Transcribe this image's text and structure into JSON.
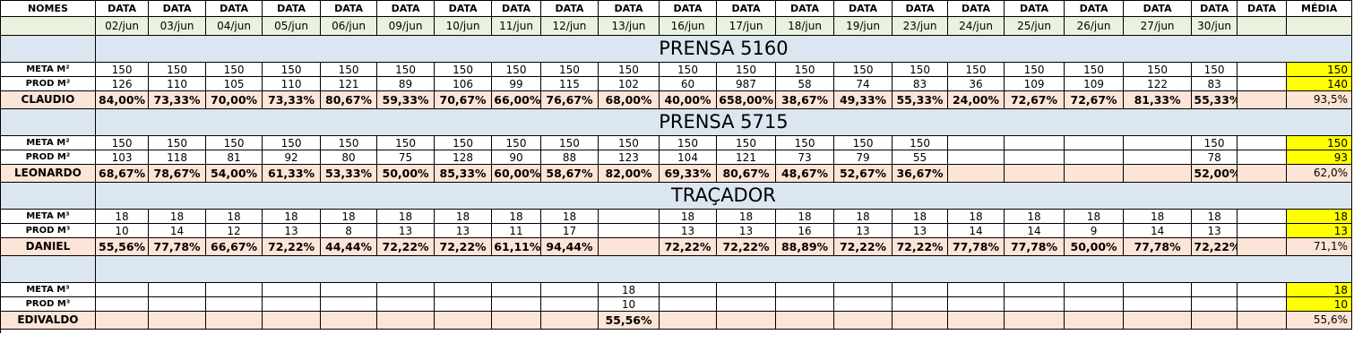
{
  "header": {
    "names_label": "NOMES",
    "data_labels": [
      "DATA",
      "DATA",
      "DATA",
      "DATA",
      "DATA",
      "DATA",
      "DATA",
      "DATA",
      "DATA",
      "DATA",
      "DATA",
      "DATA",
      "DATA",
      "DATA",
      "DATA",
      "DATA",
      "DATA",
      "DATA",
      "DATA",
      "DATA",
      "DATA"
    ],
    "average_label": "MÉDIA",
    "dates": [
      "02/jun",
      "03/jun",
      "04/jun",
      "05/jun",
      "06/jun",
      "09/jun",
      "10/jun",
      "11/jun",
      "12/jun",
      "13/jun",
      "16/jun",
      "17/jun",
      "18/jun",
      "19/jun",
      "23/jun",
      "24/jun",
      "25/jun",
      "26/jun",
      "27/jun",
      "30/jun",
      ""
    ]
  },
  "sections": [
    {
      "title": "PRENSA 5160",
      "meta": {
        "label": "META M²",
        "values": [
          "150",
          "150",
          "150",
          "150",
          "150",
          "150",
          "150",
          "150",
          "150",
          "150",
          "150",
          "150",
          "150",
          "150",
          "150",
          "150",
          "150",
          "150",
          "150",
          "150",
          ""
        ],
        "avg": "150"
      },
      "prod": {
        "label": "PROD M²",
        "values": [
          "126",
          "110",
          "105",
          "110",
          "121",
          "89",
          "106",
          "99",
          "115",
          "102",
          "60",
          "987",
          "58",
          "74",
          "83",
          "36",
          "109",
          "109",
          "122",
          "83",
          ""
        ],
        "avg": "140"
      },
      "person": {
        "label": "CLAUDIO",
        "values": [
          "84,00%",
          "73,33%",
          "70,00%",
          "73,33%",
          "80,67%",
          "59,33%",
          "70,67%",
          "66,00%",
          "76,67%",
          "68,00%",
          "40,00%",
          "658,00%",
          "38,67%",
          "49,33%",
          "55,33%",
          "24,00%",
          "72,67%",
          "72,67%",
          "81,33%",
          "55,33%",
          ""
        ],
        "avg": "93,5%"
      }
    },
    {
      "title": "PRENSA 5715",
      "meta": {
        "label": "META M²",
        "values": [
          "150",
          "150",
          "150",
          "150",
          "150",
          "150",
          "150",
          "150",
          "150",
          "150",
          "150",
          "150",
          "150",
          "150",
          "150",
          "",
          "",
          "",
          "",
          "150",
          ""
        ],
        "avg": "150"
      },
      "prod": {
        "label": "PROD M²",
        "values": [
          "103",
          "118",
          "81",
          "92",
          "80",
          "75",
          "128",
          "90",
          "88",
          "123",
          "104",
          "121",
          "73",
          "79",
          "55",
          "",
          "",
          "",
          "",
          "78",
          ""
        ],
        "avg": "93"
      },
      "person": {
        "label": "LEONARDO",
        "values": [
          "68,67%",
          "78,67%",
          "54,00%",
          "61,33%",
          "53,33%",
          "50,00%",
          "85,33%",
          "60,00%",
          "58,67%",
          "82,00%",
          "69,33%",
          "80,67%",
          "48,67%",
          "52,67%",
          "36,67%",
          "",
          "",
          "",
          "",
          "52,00%",
          ""
        ],
        "avg": "62,0%"
      }
    },
    {
      "title": "TRAÇADOR",
      "meta": {
        "label": "META M³",
        "values": [
          "18",
          "18",
          "18",
          "18",
          "18",
          "18",
          "18",
          "18",
          "18",
          "",
          "18",
          "18",
          "18",
          "18",
          "18",
          "18",
          "18",
          "18",
          "18",
          "18",
          ""
        ],
        "avg": "18"
      },
      "prod": {
        "label": "PROD M³",
        "values": [
          "10",
          "14",
          "12",
          "13",
          "8",
          "13",
          "13",
          "11",
          "17",
          "",
          "13",
          "13",
          "16",
          "13",
          "13",
          "14",
          "14",
          "9",
          "14",
          "13",
          ""
        ],
        "avg": "13"
      },
      "person": {
        "label": "DANIEL",
        "values": [
          "55,56%",
          "77,78%",
          "66,67%",
          "72,22%",
          "44,44%",
          "72,22%",
          "72,22%",
          "61,11%",
          "94,44%",
          "",
          "72,22%",
          "72,22%",
          "88,89%",
          "72,22%",
          "72,22%",
          "77,78%",
          "77,78%",
          "50,00%",
          "77,78%",
          "72,22%",
          ""
        ],
        "avg": "71,1%"
      }
    },
    {
      "title": "",
      "meta": {
        "label": "META M³",
        "values": [
          "",
          "",
          "",
          "",
          "",
          "",
          "",
          "",
          "",
          "18",
          "",
          "",
          "",
          "",
          "",
          "",
          "",
          "",
          "",
          "",
          ""
        ],
        "avg": "18"
      },
      "prod": {
        "label": "PROD M³",
        "values": [
          "",
          "",
          "",
          "",
          "",
          "",
          "",
          "",
          "",
          "10",
          "",
          "",
          "",
          "",
          "",
          "",
          "",
          "",
          "",
          "",
          ""
        ],
        "avg": "10"
      },
      "person": {
        "label": "EDIVALDO",
        "values": [
          "",
          "",
          "",
          "",
          "",
          "",
          "",
          "",
          "",
          "55,56%",
          "",
          "",
          "",
          "",
          "",
          "",
          "",
          "",
          "",
          "",
          ""
        ],
        "avg": "55,6%"
      }
    }
  ],
  "colors": {
    "date_row_bg": "#eaf1dd",
    "title_row_bg": "#dce6f1",
    "percent_row_bg": "#fce4d6",
    "average_highlight": "#ffff00"
  }
}
